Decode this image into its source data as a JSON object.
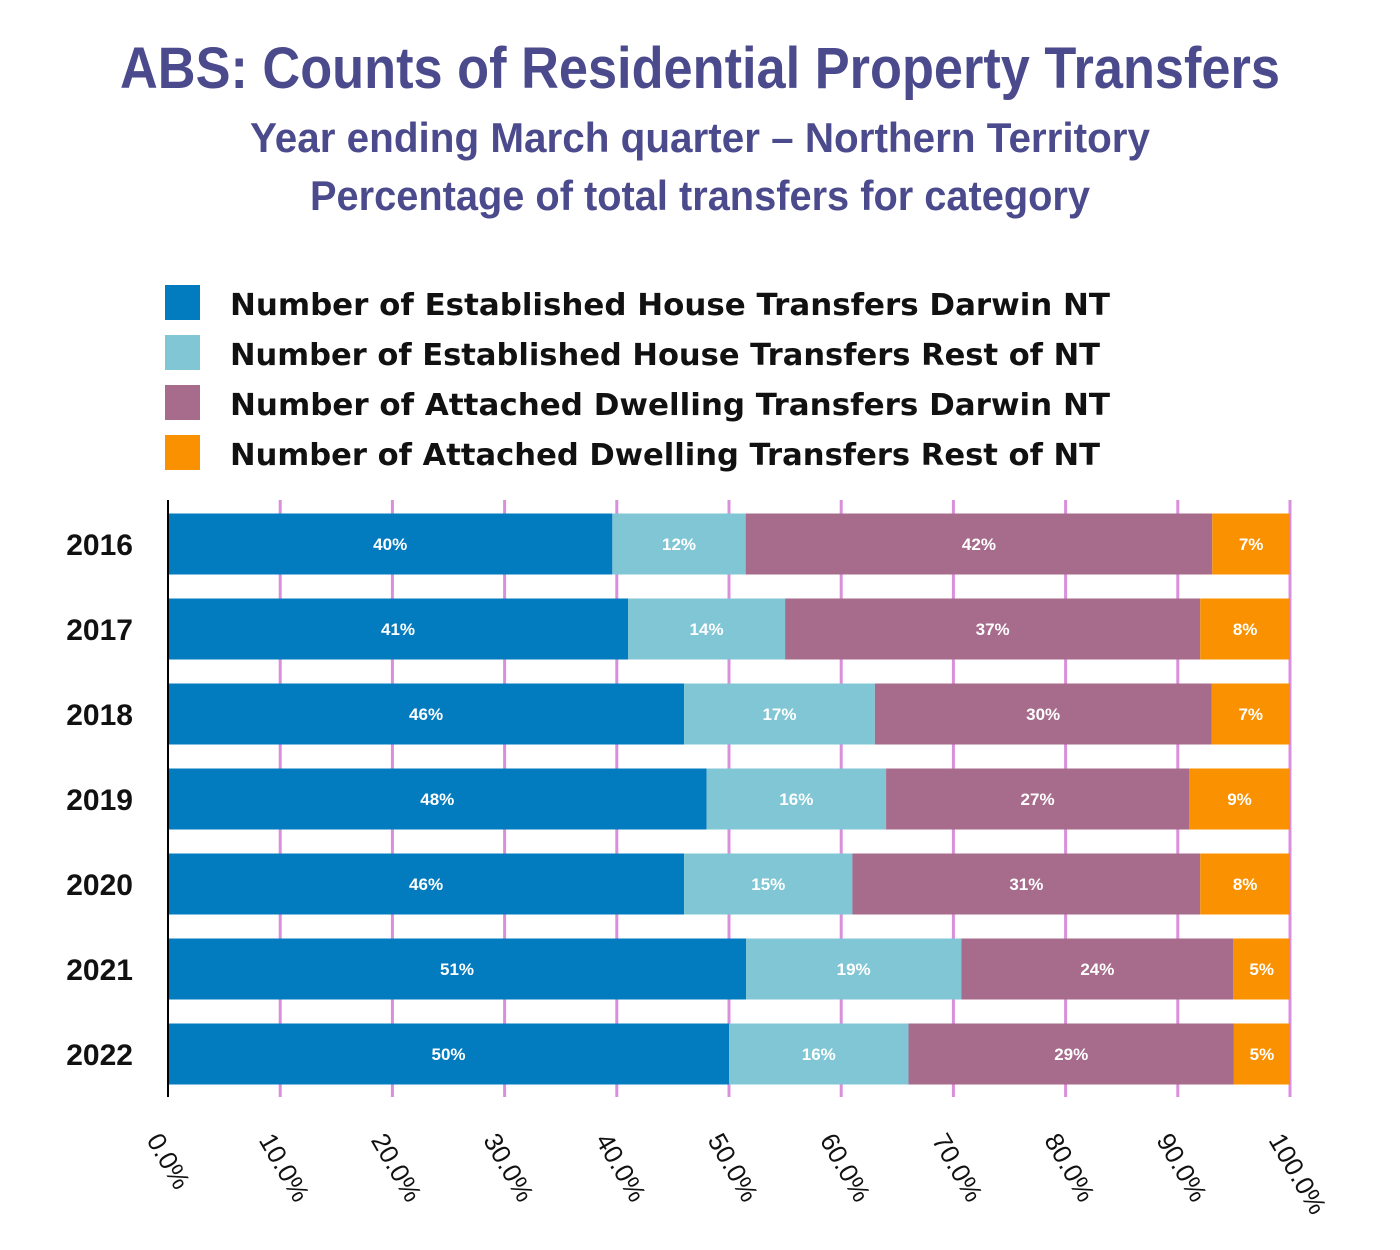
{
  "chart_data": {
    "type": "bar",
    "orientation": "horizontal",
    "stacked": true,
    "title": "ABS: Counts of Residential Property Transfers",
    "subtitle": [
      "Year ending March quarter – Northern Territory",
      "Percentage of total transfers for category"
    ],
    "categories": [
      "2016",
      "2017",
      "2018",
      "2019",
      "2020",
      "2021",
      "2022"
    ],
    "series": [
      {
        "name": "Number of Established House Transfers Darwin NT",
        "color": "#037bbf",
        "values": [
          40,
          41,
          46,
          48,
          46,
          51,
          50
        ]
      },
      {
        "name": "Number of Established House Transfers Rest of NT",
        "color": "#80c6d5",
        "values": [
          12,
          14,
          17,
          16,
          15,
          19,
          16
        ]
      },
      {
        "name": "Number of Attached Dwelling Transfers Darwin NT",
        "color": "#a76b8c",
        "values": [
          42,
          37,
          30,
          27,
          31,
          24,
          29
        ]
      },
      {
        "name": "Number of Attached Dwelling Transfers Rest of NT",
        "color": "#fa9100",
        "values": [
          7,
          8,
          7,
          9,
          8,
          5,
          5
        ]
      }
    ],
    "xlim": [
      0,
      100
    ],
    "xticks": [
      "0.0%",
      "10.0%",
      "20.0%",
      "30.0%",
      "40.0%",
      "50.0%",
      "60.0%",
      "70.0%",
      "80.0%",
      "90.0%",
      "100.0%"
    ],
    "value_suffix": "%",
    "grid": true,
    "grid_color": "#d98fdc",
    "legend_position": "top"
  }
}
